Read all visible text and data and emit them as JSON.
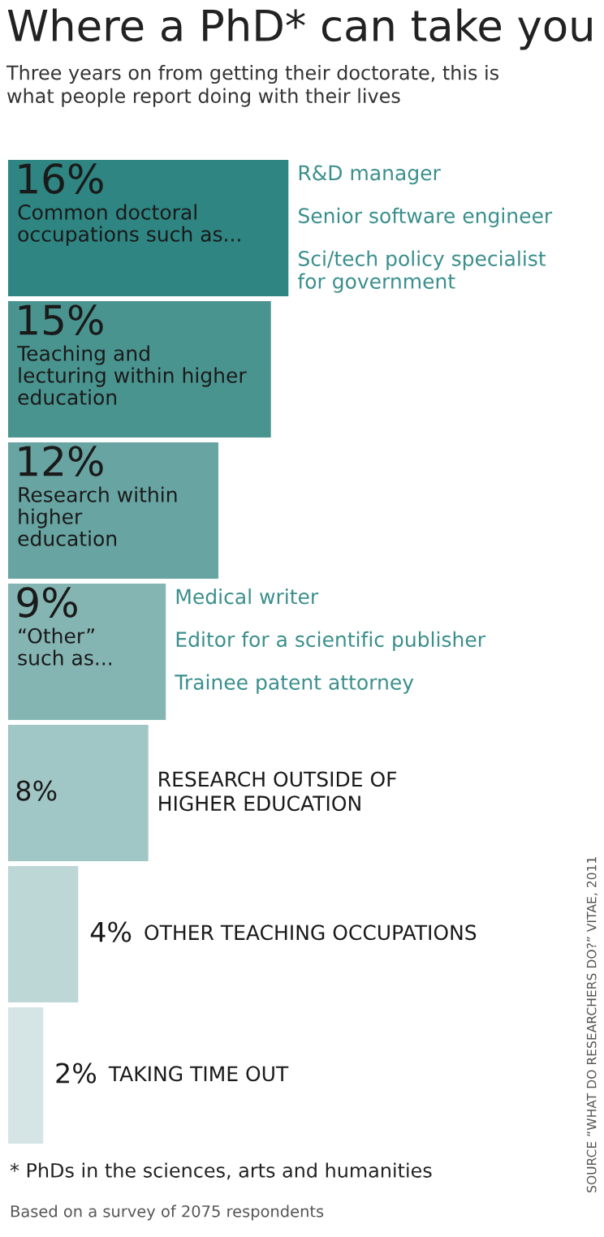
{
  "chart_data": {
    "type": "bar",
    "orientation": "horizontal",
    "title": "Where a PhD* can take you",
    "subtitle": "Three years on from getting their doctorate, this is\nwhat people report doing with their lives",
    "categories": [
      "Common doctoral\noccupations such as...",
      "Teaching and\nlecturing within higher\neducation",
      "Research within\nhigher\neducation",
      "“Other”\nsuch as...",
      "RESEARCH OUTSIDE OF\nHIGHER EDUCATION",
      "OTHER TEACHING OCCUPATIONS",
      "TAKING TIME OUT"
    ],
    "values": [
      16,
      15,
      12,
      9,
      8,
      4,
      2
    ],
    "value_labels": [
      "16%",
      "15%",
      "12%",
      "9%",
      "8%",
      "4%",
      "2%"
    ],
    "colors": [
      "#2e8582",
      "#4a9490",
      "#68a4a2",
      "#85b5b3",
      "#a0c6c5",
      "#bdd6d6",
      "#d5e5e5"
    ],
    "annotations": [
      "R&D manager",
      "Senior software engineer",
      "Sci/tech policy specialist\nfor government",
      "Medical writer",
      "Editor for a scientific publisher",
      "Trainee patent attorney",
      "* PhDs in the sciences, arts and humanities",
      "Based on a survey of 2075 respondents",
      "SOURCE “WHAT DO RESEARCHERS DO?” VITAE, 2011"
    ]
  }
}
